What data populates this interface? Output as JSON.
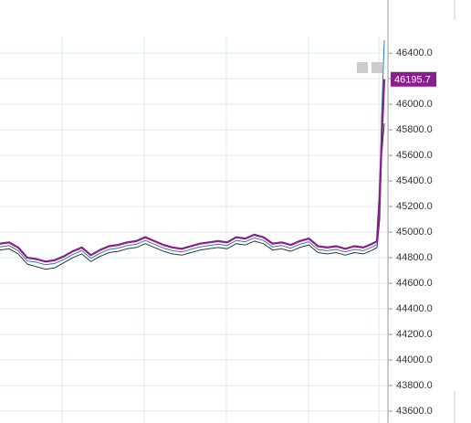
{
  "chart_data": {
    "type": "line",
    "x": [
      0,
      10,
      20,
      30,
      40,
      50,
      60,
      70,
      80,
      90,
      100,
      110,
      120,
      130,
      140,
      150,
      160,
      170,
      180,
      190,
      200,
      210,
      220,
      230,
      240,
      250,
      260,
      270,
      280,
      290,
      300,
      310,
      320,
      330,
      340,
      350,
      360,
      370,
      380,
      390,
      400,
      410,
      415,
      418,
      420,
      423
    ],
    "xlim": [
      0,
      425
    ],
    "ylim": [
      43507,
      46530
    ],
    "yticks": [
      {
        "value": 43600,
        "label": "43600.0"
      },
      {
        "value": 43800,
        "label": "43800.0"
      },
      {
        "value": 44000,
        "label": "44000.0"
      },
      {
        "value": 44200,
        "label": "44200.0"
      },
      {
        "value": 44400,
        "label": "44400.0"
      },
      {
        "value": 44600,
        "label": "44600.0"
      },
      {
        "value": 44800,
        "label": "44800.0"
      },
      {
        "value": 45000,
        "label": "45000.0"
      },
      {
        "value": 45200,
        "label": "45200.0"
      },
      {
        "value": 45400,
        "label": "45400.0"
      },
      {
        "value": 45600,
        "label": "45600.0"
      },
      {
        "value": 45800,
        "label": "45800.0"
      },
      {
        "value": 46000,
        "label": "46000.0"
      },
      {
        "value": 46200,
        "label": "46200.0"
      },
      {
        "value": 46400,
        "label": "46400.0"
      }
    ],
    "grid": true,
    "price_label": 46195.7,
    "price_color": "#8b1e8e",
    "series": [
      {
        "color": "#8b1e8e",
        "width": 2.2,
        "values": [
          44910,
          44920,
          44880,
          44800,
          44790,
          44770,
          44780,
          44810,
          44850,
          44880,
          44820,
          44860,
          44890,
          44900,
          44920,
          44930,
          44960,
          44930,
          44900,
          44880,
          44870,
          44890,
          44910,
          44920,
          44930,
          44920,
          44960,
          44950,
          44980,
          44960,
          44910,
          44920,
          44900,
          44930,
          44950,
          44890,
          44880,
          44890,
          44870,
          44890,
          44880,
          44910,
          44930,
          45300,
          45700,
          46195.7
        ]
      },
      {
        "color": "#2a7f9e",
        "width": 1,
        "values": [
          44885,
          44895,
          44855,
          44775,
          44765,
          44745,
          44755,
          44785,
          44825,
          44855,
          44795,
          44835,
          44865,
          44875,
          44895,
          44905,
          44935,
          44905,
          44875,
          44855,
          44845,
          44865,
          44885,
          44895,
          44905,
          44895,
          44935,
          44925,
          44955,
          44935,
          44885,
          44895,
          44875,
          44905,
          44925,
          44865,
          44855,
          44865,
          44845,
          44865,
          44855,
          44885,
          44905,
          45200,
          45900,
          46500
        ]
      },
      {
        "color": "#333333",
        "width": 1,
        "values": [
          44860,
          44870,
          44830,
          44750,
          44730,
          44710,
          44720,
          44760,
          44800,
          44830,
          44770,
          44810,
          44840,
          44850,
          44870,
          44880,
          44910,
          44880,
          44850,
          44830,
          44820,
          44840,
          44860,
          44870,
          44880,
          44870,
          44910,
          44900,
          44930,
          44910,
          44860,
          44870,
          44850,
          44880,
          44900,
          44840,
          44830,
          44840,
          44820,
          44840,
          44830,
          44860,
          44880,
          45100,
          45600,
          45850
        ]
      }
    ]
  }
}
